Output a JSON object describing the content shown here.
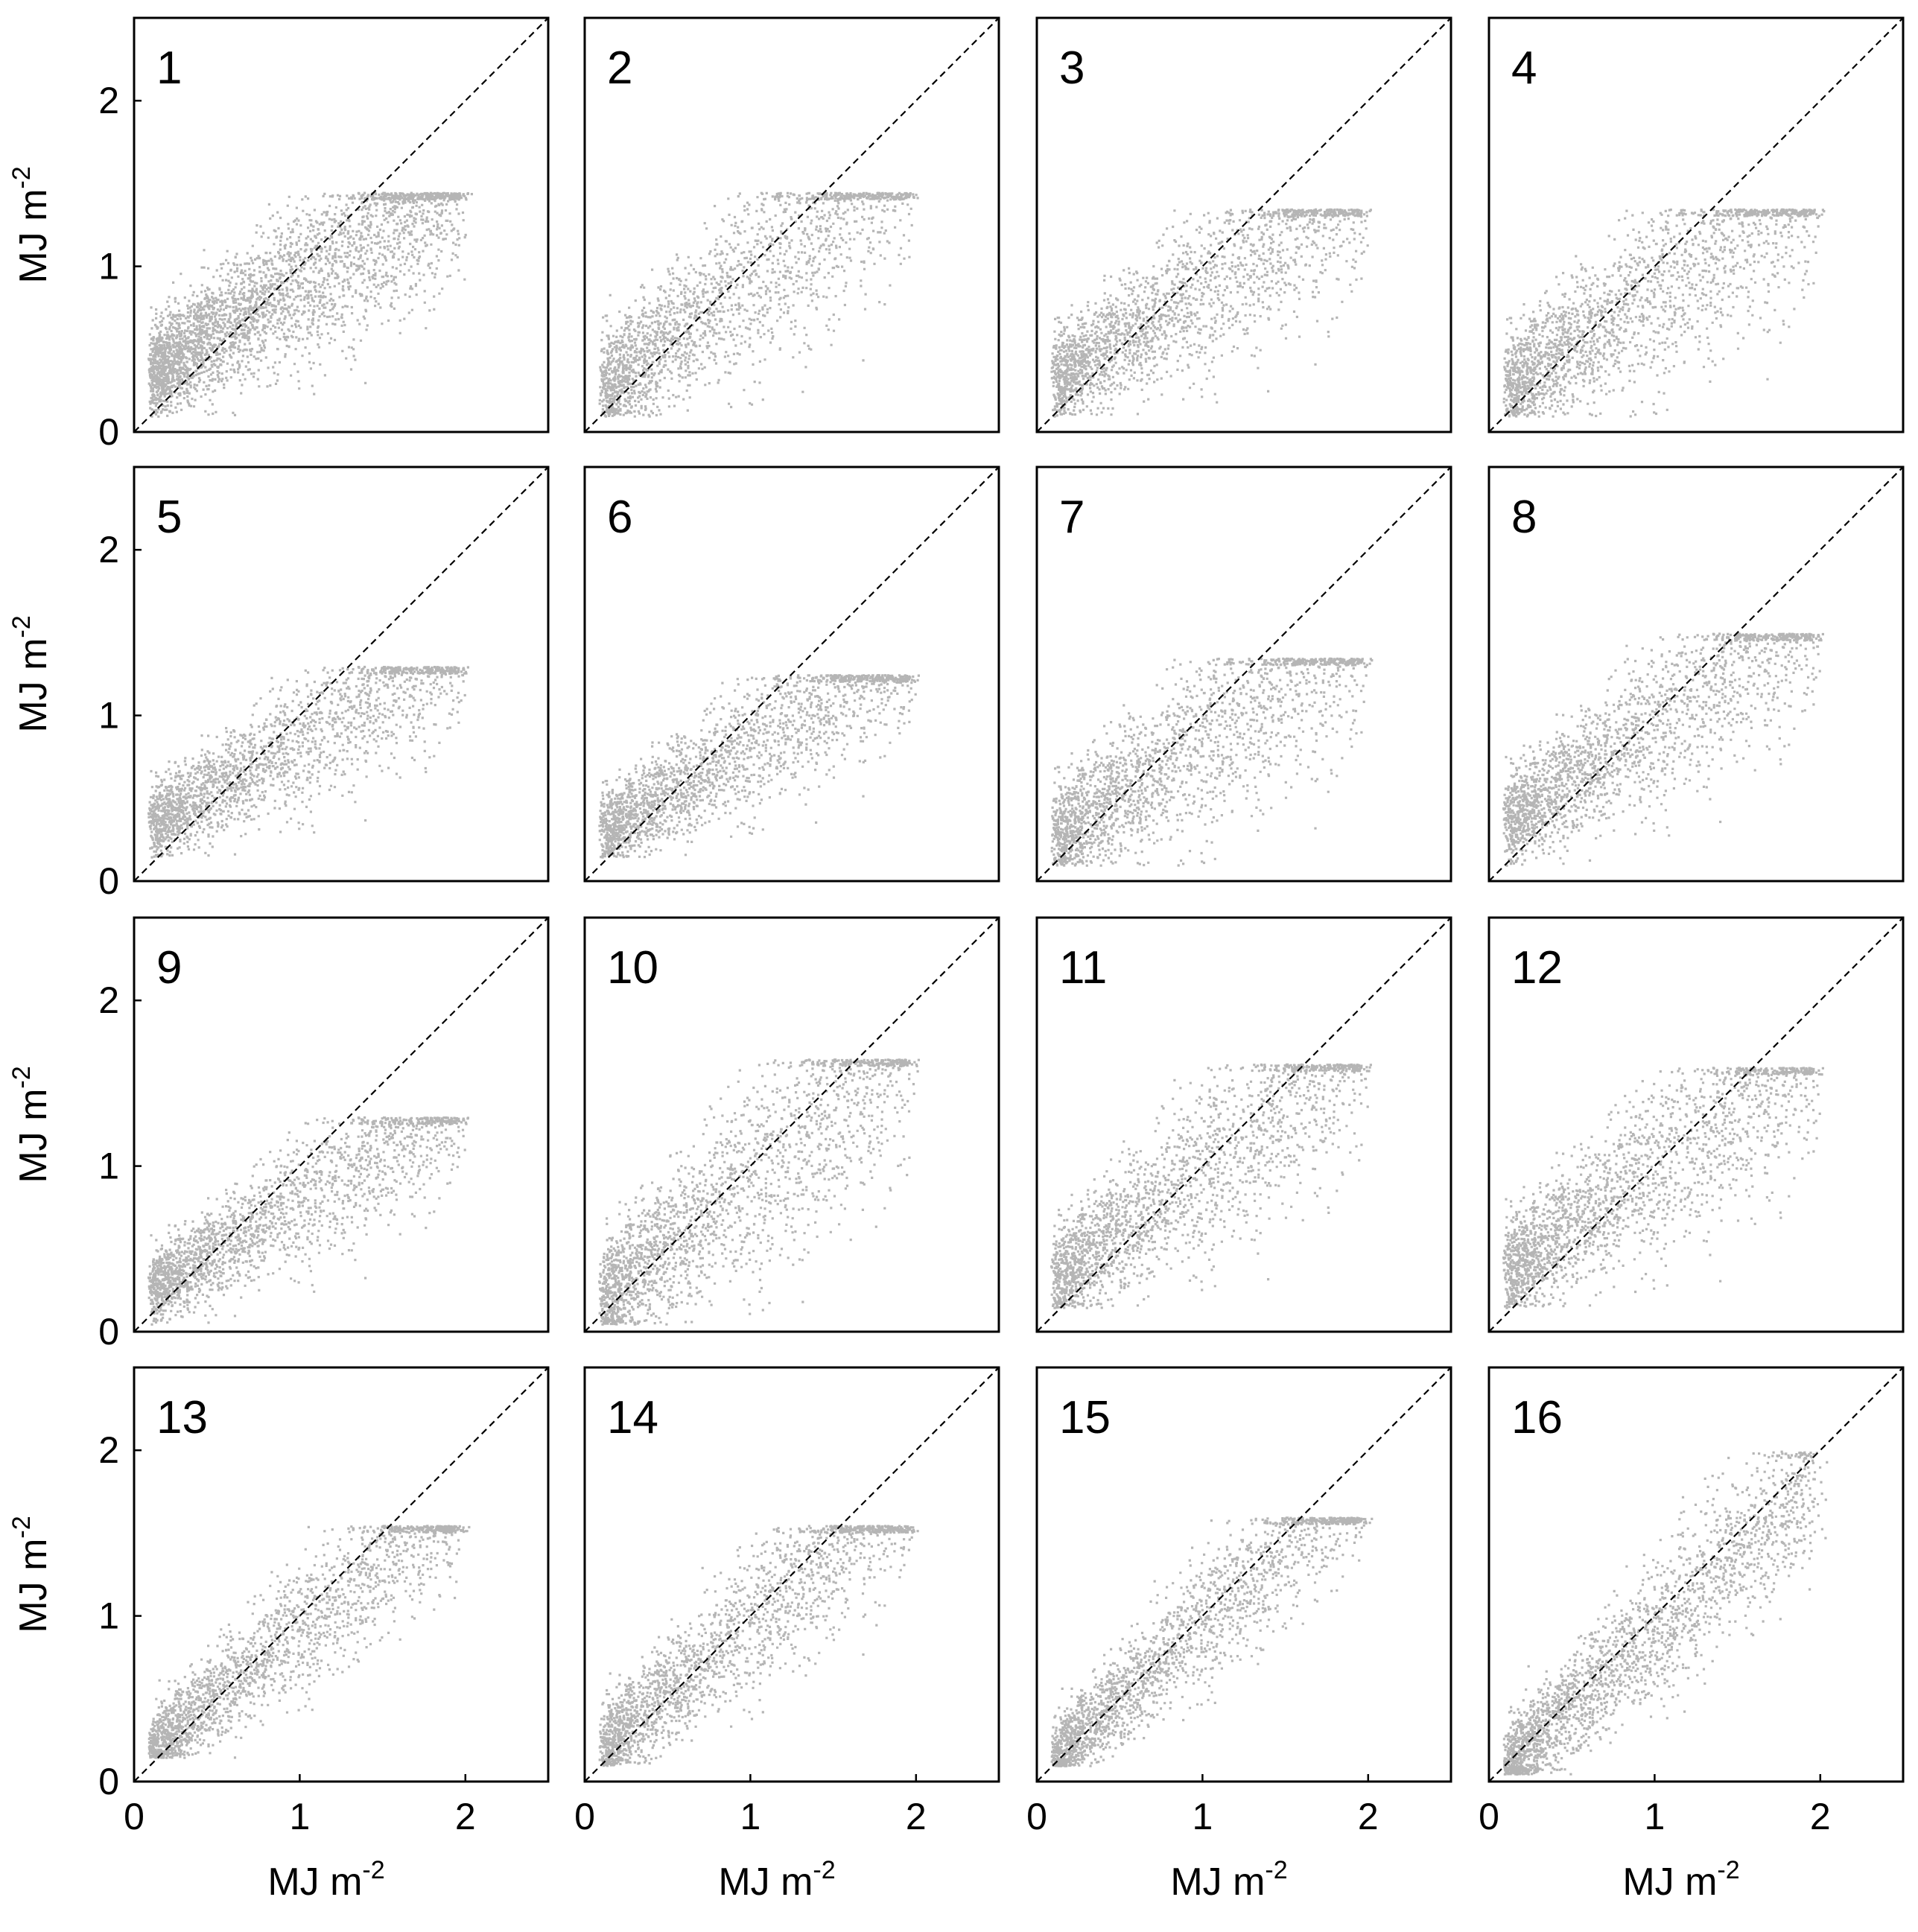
{
  "figure": {
    "point_color": "#b5b5b5",
    "x_axis_title": "MJ m",
    "y_axis_title": "MJ m",
    "axis_title_exponent": "-2"
  },
  "chart_data": {
    "type": "scatter",
    "layout": "4x4 small multiples",
    "xlim": [
      0,
      2.5
    ],
    "ylim": [
      0,
      2.5
    ],
    "x_ticks": [
      "0",
      "1",
      "2"
    ],
    "y_ticks": [
      "0",
      "1",
      "2"
    ],
    "x_axis_shown_on": "bottom row",
    "y_axis_shown_on": "left column",
    "xlabel": "MJ m-2",
    "ylabel": "MJ m-2",
    "grid": false,
    "reference_line": {
      "type": "1:1",
      "style": "dashed",
      "from": [
        0,
        0
      ],
      "to": [
        2.5,
        2.5
      ]
    },
    "point_count_per_panel": 5000,
    "panels": [
      {
        "label": "1",
        "y_cap": 1.45,
        "y_floor": 0.1,
        "y_base": 0.4,
        "slope": 0.6,
        "spread": 0.22
      },
      {
        "label": "2",
        "y_cap": 1.45,
        "y_floor": 0.1,
        "y_base": 0.3,
        "slope": 0.75,
        "spread": 0.26
      },
      {
        "label": "3",
        "y_cap": 1.35,
        "y_floor": 0.1,
        "y_base": 0.35,
        "slope": 0.6,
        "spread": 0.22
      },
      {
        "label": "4",
        "y_cap": 1.35,
        "y_floor": 0.1,
        "y_base": 0.3,
        "slope": 0.65,
        "spread": 0.25
      },
      {
        "label": "5",
        "y_cap": 1.3,
        "y_floor": 0.15,
        "y_base": 0.38,
        "slope": 0.55,
        "spread": 0.18
      },
      {
        "label": "6",
        "y_cap": 1.25,
        "y_floor": 0.15,
        "y_base": 0.33,
        "slope": 0.58,
        "spread": 0.18
      },
      {
        "label": "7",
        "y_cap": 1.35,
        "y_floor": 0.1,
        "y_base": 0.3,
        "slope": 0.65,
        "spread": 0.25
      },
      {
        "label": "8",
        "y_cap": 1.5,
        "y_floor": 0.1,
        "y_base": 0.4,
        "slope": 0.65,
        "spread": 0.22
      },
      {
        "label": "9",
        "y_cap": 1.3,
        "y_floor": 0.05,
        "y_base": 0.3,
        "slope": 0.58,
        "spread": 0.18
      },
      {
        "label": "10",
        "y_cap": 1.65,
        "y_floor": 0.05,
        "y_base": 0.25,
        "slope": 0.8,
        "spread": 0.28
      },
      {
        "label": "11",
        "y_cap": 1.62,
        "y_floor": 0.15,
        "y_base": 0.35,
        "slope": 0.75,
        "spread": 0.25
      },
      {
        "label": "12",
        "y_cap": 1.6,
        "y_floor": 0.15,
        "y_base": 0.4,
        "slope": 0.7,
        "spread": 0.25
      },
      {
        "label": "13",
        "y_cap": 1.55,
        "y_floor": 0.15,
        "y_base": 0.25,
        "slope": 0.8,
        "spread": 0.18
      },
      {
        "label": "14",
        "y_cap": 1.55,
        "y_floor": 0.1,
        "y_base": 0.25,
        "slope": 0.85,
        "spread": 0.2
      },
      {
        "label": "15",
        "y_cap": 1.6,
        "y_floor": 0.1,
        "y_base": 0.2,
        "slope": 0.9,
        "spread": 0.18
      },
      {
        "label": "16",
        "y_cap": 2.0,
        "y_floor": 0.05,
        "y_base": 0.15,
        "slope": 0.92,
        "spread": 0.2
      }
    ]
  }
}
